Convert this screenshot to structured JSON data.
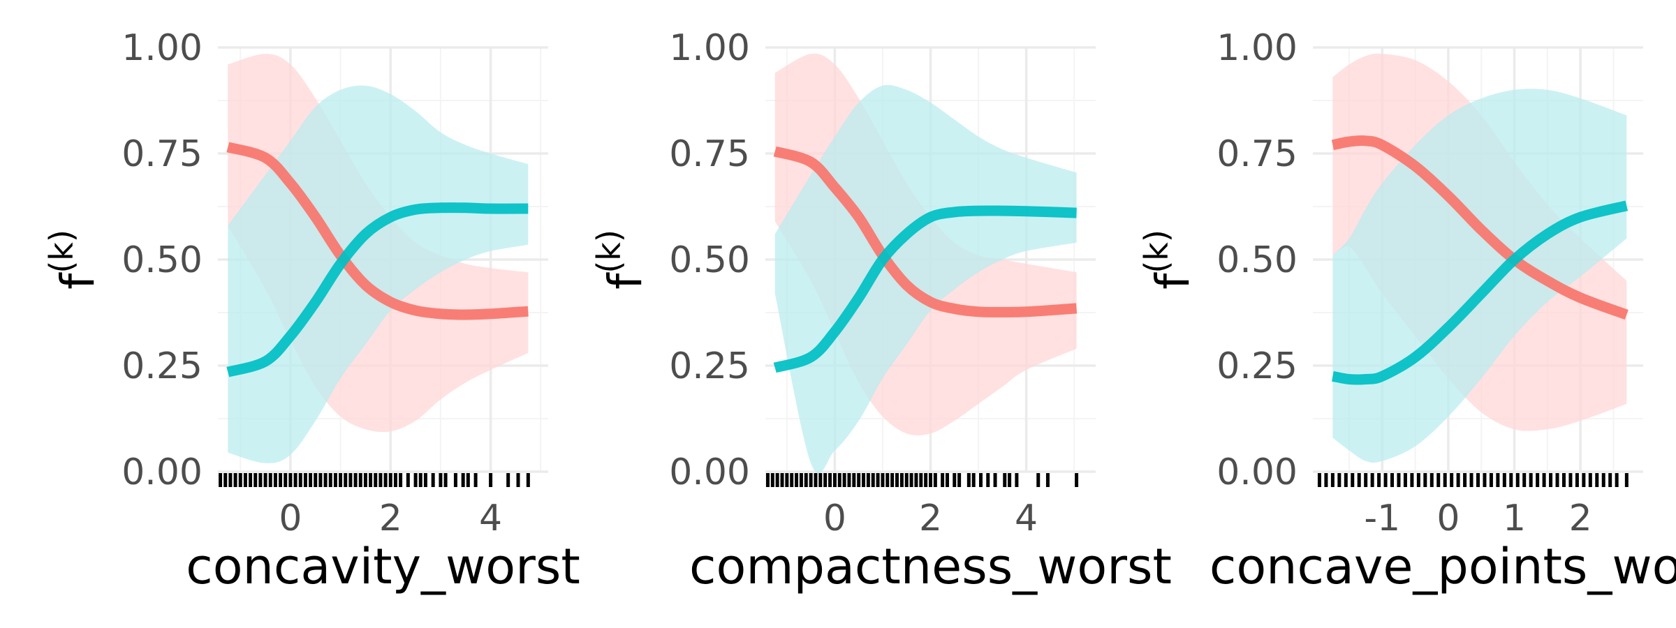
{
  "colors": {
    "series_red": "#F8766D",
    "series_teal": "#00BFC4",
    "band_red": "#FFD6D6",
    "band_teal": "#B8ECEE",
    "grid_major": "#EBEBEB",
    "grid_minor": "#F4F4F4",
    "tick_text": "#4D4D4D",
    "rug": "#000000"
  },
  "chart_data": [
    {
      "type": "line",
      "xlabel": "concavity_worst",
      "ylabel_main": "f",
      "ylabel_sup": "(k)",
      "xlim": [
        -1.45,
        5.15
      ],
      "ylim": [
        0,
        1
      ],
      "xticks": [
        0,
        2,
        4
      ],
      "xminor": [
        -1,
        1,
        3,
        5
      ],
      "yticks": [
        "0.00",
        "0.25",
        "0.50",
        "0.75",
        "1.00"
      ],
      "grid": true,
      "series": [
        {
          "color": "red",
          "x": [
            -1.25,
            -0.5,
            0.0,
            0.5,
            1.0,
            1.5,
            2.0,
            2.5,
            3.0,
            3.5,
            4.0,
            4.75
          ],
          "y": [
            0.765,
            0.74,
            0.68,
            0.6,
            0.51,
            0.44,
            0.4,
            0.38,
            0.372,
            0.37,
            0.372,
            0.378
          ],
          "upper": [
            0.96,
            0.985,
            0.96,
            0.88,
            0.78,
            0.68,
            0.6,
            0.54,
            0.51,
            0.49,
            0.48,
            0.47
          ],
          "lower": [
            0.58,
            0.43,
            0.31,
            0.2,
            0.13,
            0.1,
            0.095,
            0.12,
            0.17,
            0.21,
            0.24,
            0.28
          ]
        },
        {
          "color": "teal",
          "x": [
            -1.25,
            -0.5,
            0.0,
            0.5,
            1.0,
            1.5,
            2.0,
            2.5,
            3.0,
            3.5,
            4.0,
            4.75
          ],
          "y": [
            0.235,
            0.26,
            0.32,
            0.4,
            0.49,
            0.56,
            0.6,
            0.618,
            0.622,
            0.622,
            0.62,
            0.62
          ],
          "upper": [
            0.58,
            0.7,
            0.78,
            0.86,
            0.9,
            0.91,
            0.89,
            0.85,
            0.8,
            0.77,
            0.75,
            0.725
          ],
          "lower": [
            0.045,
            0.02,
            0.04,
            0.12,
            0.22,
            0.3,
            0.38,
            0.43,
            0.47,
            0.5,
            0.52,
            0.535
          ]
        }
      ],
      "rug": [
        -1.4,
        -1.3,
        -1.2,
        -1.1,
        -1.0,
        -0.9,
        -0.8,
        -0.7,
        -0.6,
        -0.5,
        -0.4,
        -0.3,
        -0.2,
        -0.1,
        0.0,
        0.1,
        0.2,
        0.3,
        0.4,
        0.5,
        0.6,
        0.7,
        0.8,
        0.9,
        1.0,
        1.1,
        1.2,
        1.3,
        1.4,
        1.5,
        1.6,
        1.7,
        1.8,
        1.9,
        2.0,
        2.1,
        2.2,
        2.35,
        2.5,
        2.6,
        2.7,
        2.85,
        3.0,
        3.1,
        3.3,
        3.45,
        3.55,
        3.7,
        4.0,
        4.35,
        4.55,
        4.75
      ]
    },
    {
      "type": "line",
      "xlabel": "compactness_worst",
      "ylabel_main": "f",
      "ylabel_sup": "(k)",
      "xlim": [
        -1.45,
        5.45
      ],
      "ylim": [
        0,
        1
      ],
      "xticks": [
        0,
        2,
        4
      ],
      "xminor": [
        -1,
        1,
        3,
        5
      ],
      "yticks": [
        "0.00",
        "0.25",
        "0.50",
        "0.75",
        "1.00"
      ],
      "grid": true,
      "series": [
        {
          "color": "red",
          "x": [
            -1.25,
            -0.5,
            0.0,
            0.5,
            1.0,
            1.5,
            2.0,
            2.5,
            3.0,
            3.5,
            4.0,
            5.05
          ],
          "y": [
            0.755,
            0.73,
            0.67,
            0.6,
            0.51,
            0.44,
            0.4,
            0.384,
            0.377,
            0.376,
            0.377,
            0.385
          ],
          "upper": [
            0.94,
            0.985,
            0.96,
            0.88,
            0.78,
            0.68,
            0.6,
            0.54,
            0.51,
            0.5,
            0.49,
            0.47
          ],
          "lower": [
            0.59,
            0.45,
            0.33,
            0.21,
            0.13,
            0.09,
            0.09,
            0.12,
            0.16,
            0.2,
            0.24,
            0.29
          ]
        },
        {
          "color": "teal",
          "x": [
            -1.25,
            -0.5,
            0.0,
            0.5,
            1.0,
            1.5,
            2.0,
            2.5,
            3.0,
            3.5,
            4.0,
            5.05
          ],
          "y": [
            0.245,
            0.27,
            0.33,
            0.41,
            0.5,
            0.56,
            0.6,
            0.612,
            0.615,
            0.615,
            0.614,
            0.61
          ],
          "upper": [
            0.56,
            0.7,
            0.79,
            0.87,
            0.91,
            0.9,
            0.87,
            0.83,
            0.79,
            0.76,
            0.74,
            0.705
          ],
          "lower": [
            0.42,
            0.02,
            0.05,
            0.12,
            0.22,
            0.3,
            0.38,
            0.43,
            0.47,
            0.5,
            0.52,
            0.54
          ]
        }
      ],
      "rug": [
        -1.4,
        -1.3,
        -1.2,
        -1.1,
        -1.0,
        -0.9,
        -0.8,
        -0.7,
        -0.6,
        -0.5,
        -0.4,
        -0.3,
        -0.2,
        -0.1,
        0.0,
        0.1,
        0.2,
        0.3,
        0.4,
        0.5,
        0.6,
        0.7,
        0.8,
        0.9,
        1.0,
        1.1,
        1.2,
        1.3,
        1.4,
        1.5,
        1.6,
        1.7,
        1.8,
        1.9,
        2.0,
        2.1,
        2.25,
        2.35,
        2.5,
        2.6,
        2.8,
        2.9,
        3.05,
        3.2,
        3.35,
        3.55,
        3.65,
        3.8,
        4.25,
        4.45,
        5.05
      ]
    },
    {
      "type": "line",
      "xlabel": "concave_points_worst",
      "ylabel_main": "f",
      "ylabel_sup": "(k)",
      "xlim": [
        -2.05,
        2.95
      ],
      "ylim": [
        0,
        1
      ],
      "xticks": [
        "-1",
        "0",
        "1",
        "2"
      ],
      "xminor": [
        -1.5,
        -0.5,
        0.5,
        1.5,
        2.5
      ],
      "yticks": [
        "0.00",
        "0.25",
        "0.50",
        "0.75",
        "1.00"
      ],
      "grid": true,
      "series": [
        {
          "color": "red",
          "x": [
            -1.75,
            -1.5,
            -1.25,
            -1.0,
            -0.5,
            0.0,
            0.5,
            1.0,
            1.5,
            2.0,
            2.7
          ],
          "y": [
            0.77,
            0.778,
            0.78,
            0.77,
            0.72,
            0.65,
            0.57,
            0.5,
            0.45,
            0.41,
            0.37
          ],
          "upper": [
            0.93,
            0.96,
            0.98,
            0.985,
            0.97,
            0.92,
            0.84,
            0.73,
            0.63,
            0.55,
            0.45
          ],
          "lower": [
            0.51,
            0.53,
            0.48,
            0.42,
            0.32,
            0.22,
            0.14,
            0.1,
            0.1,
            0.12,
            0.16
          ]
        },
        {
          "color": "teal",
          "x": [
            -1.75,
            -1.5,
            -1.25,
            -1.0,
            -0.5,
            0.0,
            0.5,
            1.0,
            1.5,
            2.0,
            2.7
          ],
          "y": [
            0.225,
            0.218,
            0.218,
            0.225,
            0.27,
            0.34,
            0.42,
            0.5,
            0.56,
            0.6,
            0.627
          ],
          "upper": [
            0.51,
            0.55,
            0.62,
            0.68,
            0.77,
            0.84,
            0.88,
            0.9,
            0.9,
            0.88,
            0.84
          ],
          "lower": [
            0.08,
            0.05,
            0.025,
            0.025,
            0.06,
            0.13,
            0.22,
            0.32,
            0.4,
            0.46,
            0.55
          ]
        }
      ],
      "rug": [
        -1.95,
        -1.85,
        -1.75,
        -1.65,
        -1.55,
        -1.45,
        -1.35,
        -1.25,
        -1.15,
        -1.05,
        -0.95,
        -0.85,
        -0.75,
        -0.65,
        -0.55,
        -0.45,
        -0.35,
        -0.25,
        -0.15,
        -0.05,
        0.05,
        0.15,
        0.25,
        0.35,
        0.45,
        0.55,
        0.65,
        0.75,
        0.85,
        0.95,
        1.05,
        1.15,
        1.25,
        1.35,
        1.45,
        1.55,
        1.65,
        1.75,
        1.85,
        1.95,
        2.05,
        2.15,
        2.25,
        2.35,
        2.45,
        2.55,
        2.7
      ]
    }
  ]
}
